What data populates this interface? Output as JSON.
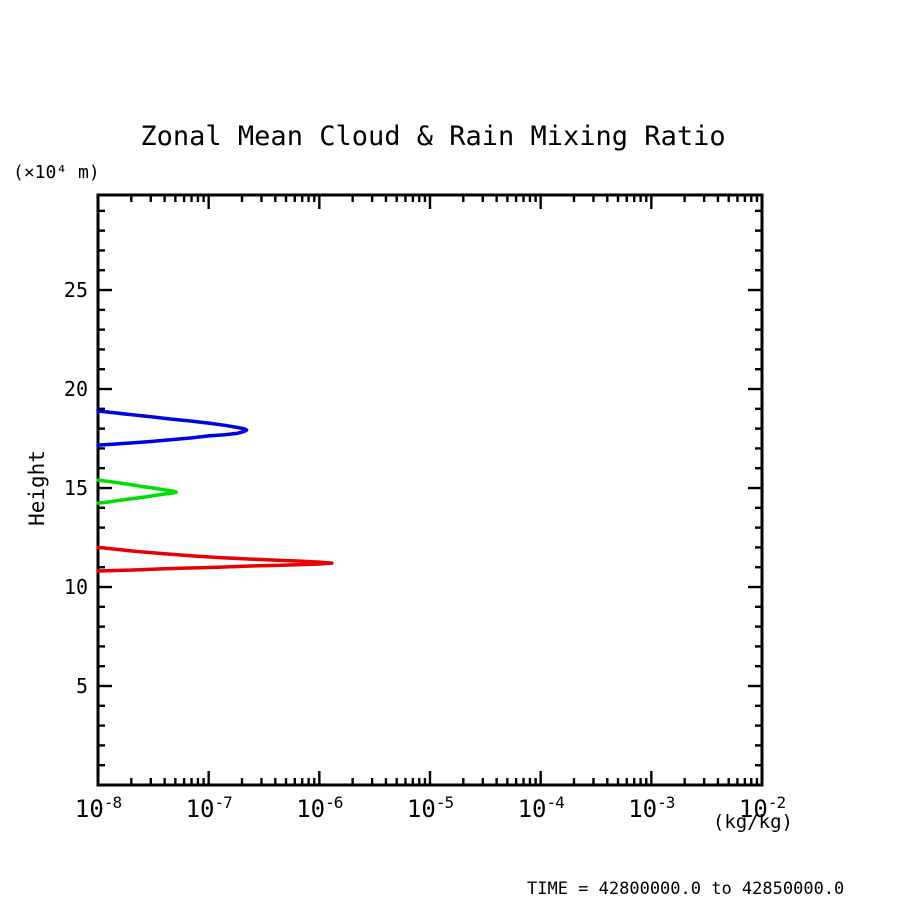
{
  "chart_data": {
    "type": "line",
    "title": "Zonal Mean Cloud & Rain Mixing Ratio",
    "ylabel": "Height",
    "y_unit_label": "(×10⁴ m)",
    "x_unit_label": "(kg/kg)",
    "footer": "TIME = 42800000.0 to 42850000.0",
    "grid": false,
    "legend": "none",
    "x_axis": {
      "scale": "log",
      "min_exponent": -8,
      "max_exponent": -2,
      "tick_label_base": "10",
      "tick_exponents": [
        -8,
        -7,
        -6,
        -5,
        -4,
        -3,
        -2
      ]
    },
    "y_axis": {
      "min": 0,
      "max": 29.8,
      "minor_step": 1,
      "major_step": 5,
      "tick_labels": [
        5,
        10,
        15,
        20,
        25
      ]
    },
    "frame_color": "#000000",
    "series": [
      {
        "name": "contour-blue-upper-layer",
        "color": "#0000e0",
        "peak_value": 2.2e-07,
        "peak_height": 17.93,
        "points": [
          [
            1e-08,
            18.89
          ],
          [
            1.4e-08,
            18.8
          ],
          [
            1.9e-08,
            18.72
          ],
          [
            3e-08,
            18.6
          ],
          [
            4.4e-08,
            18.49
          ],
          [
            7e-08,
            18.38
          ],
          [
            1e-07,
            18.28
          ],
          [
            1.4e-07,
            18.17
          ],
          [
            1.8e-07,
            18.06
          ],
          [
            2.1e-07,
            17.99
          ],
          [
            2.2e-07,
            17.93
          ],
          [
            2.1e-07,
            17.86
          ],
          [
            1.8e-07,
            17.76
          ],
          [
            1.4e-07,
            17.69
          ],
          [
            1e-07,
            17.63
          ],
          [
            7e-08,
            17.53
          ],
          [
            4.4e-08,
            17.43
          ],
          [
            3e-08,
            17.35
          ],
          [
            1.9e-08,
            17.27
          ],
          [
            1.4e-08,
            17.22
          ],
          [
            1e-08,
            17.17
          ]
        ]
      },
      {
        "name": "contour-green-middle-layer",
        "color": "#00dd00",
        "peak_value": 5.1e-08,
        "peak_height": 14.79,
        "points": [
          [
            1e-08,
            15.4
          ],
          [
            1.3e-08,
            15.32
          ],
          [
            1.6e-08,
            15.25
          ],
          [
            2.1e-08,
            15.15
          ],
          [
            2.7e-08,
            15.05
          ],
          [
            3.4e-08,
            14.97
          ],
          [
            4e-08,
            14.91
          ],
          [
            4.8e-08,
            14.84
          ],
          [
            5.1e-08,
            14.79
          ],
          [
            4.8e-08,
            14.75
          ],
          [
            4e-08,
            14.7
          ],
          [
            3.4e-08,
            14.64
          ],
          [
            2.7e-08,
            14.55
          ],
          [
            2.1e-08,
            14.47
          ],
          [
            1.6e-08,
            14.39
          ],
          [
            1.3e-08,
            14.31
          ],
          [
            1e-08,
            14.24
          ]
        ]
      },
      {
        "name": "contour-red-lower-layer",
        "color": "#e60000",
        "peak_value": 1.3e-06,
        "peak_height": 11.21,
        "points": [
          [
            1e-08,
            12.0
          ],
          [
            1.6e-08,
            11.88
          ],
          [
            2.4e-08,
            11.78
          ],
          [
            4e-08,
            11.68
          ],
          [
            6.8e-08,
            11.58
          ],
          [
            1.2e-07,
            11.49
          ],
          [
            2.4e-07,
            11.41
          ],
          [
            4.2e-07,
            11.35
          ],
          [
            6.7e-07,
            11.31
          ],
          [
            1e-06,
            11.26
          ],
          [
            1.3e-06,
            11.21
          ],
          [
            1e-06,
            11.16
          ],
          [
            6.7e-07,
            11.13
          ],
          [
            4.2e-07,
            11.09
          ],
          [
            2.4e-07,
            11.06
          ],
          [
            1.2e-07,
            11.0
          ],
          [
            6.8e-08,
            10.96
          ],
          [
            4e-08,
            10.92
          ],
          [
            2.4e-08,
            10.87
          ],
          [
            1.6e-08,
            10.84
          ],
          [
            1e-08,
            10.81
          ]
        ]
      }
    ]
  }
}
